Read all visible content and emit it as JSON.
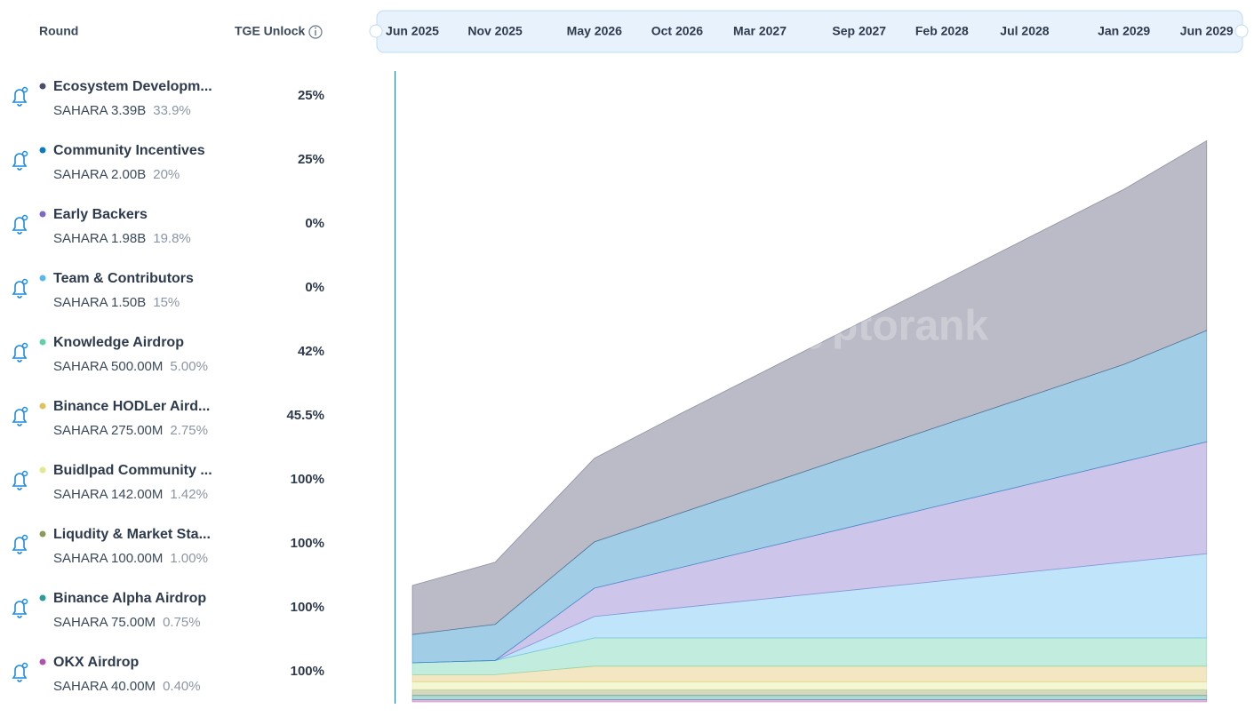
{
  "table": {
    "headers": [
      "Round",
      "TGE Unlock"
    ],
    "rows": [
      {
        "amount": "SAHARA 3.39B",
        "share": "33.9%",
        "tge": "25%"
      },
      {
        "amount": "SAHARA 2.00B",
        "share": "20%",
        "tge": "25%"
      },
      {
        "amount": "SAHARA 1.98B",
        "share": "19.8%",
        "tge": "0%"
      },
      {
        "amount": "SAHARA 1.50B",
        "share": "15%",
        "tge": "0%"
      },
      {
        "amount": "SAHARA 500.00M",
        "share": "5.00%",
        "tge": "42%"
      },
      {
        "amount": "SAHARA 275.00M",
        "share": "2.75%",
        "tge": "45.5%"
      },
      {
        "amount": "SAHARA 142.00M",
        "share": "1.42%",
        "tge": "100%"
      },
      {
        "amount": "SAHARA 100.00M",
        "share": "1.00%",
        "tge": "100%"
      },
      {
        "amount": "SAHARA 75.00M",
        "share": "0.75%",
        "tge": "100%"
      },
      {
        "amount": "SAHARA 40.00M",
        "share": "0.40%",
        "tge": "100%"
      }
    ]
  },
  "chart_data": {
    "type": "area",
    "stacked": true,
    "watermark": "cryptorank",
    "x": [
      "Jun 2025",
      "Nov 2025",
      "May 2026",
      "Oct 2026",
      "Mar 2027",
      "Sep 2027",
      "Feb 2028",
      "Jul 2028",
      "Jan 2029",
      "Jun 2029"
    ],
    "ylim": [
      0,
      10
    ],
    "series": [
      {
        "name": "Ecosystem Developm...",
        "color": "#4a4d6a",
        "values": [
          0.87,
          1.1,
          1.48,
          1.75,
          2.0,
          2.3,
          2.55,
          2.8,
          3.1,
          3.36
        ]
      },
      {
        "name": "Community Incentives",
        "color": "#0b7bbf",
        "values": [
          0.5,
          0.64,
          0.82,
          0.96,
          1.1,
          1.27,
          1.41,
          1.55,
          1.72,
          1.97
        ]
      },
      {
        "name": "Early Backers",
        "color": "#7b68c8",
        "values": [
          0,
          0,
          0.5,
          0.7,
          0.9,
          1.14,
          1.34,
          1.54,
          1.78,
          1.98
        ]
      },
      {
        "name": "Team & Contributors",
        "color": "#5ab8ee",
        "values": [
          0,
          0,
          0.38,
          0.53,
          0.68,
          0.86,
          1.01,
          1.16,
          1.34,
          1.49
        ]
      },
      {
        "name": "Knowledge Airdrop",
        "color": "#5fd0a8",
        "values": [
          0.21,
          0.25,
          0.5,
          0.5,
          0.5,
          0.5,
          0.5,
          0.5,
          0.5,
          0.5
        ]
      },
      {
        "name": "Binance HODLer Aird...",
        "color": "#e0c060",
        "values": [
          0.125,
          0.125,
          0.275,
          0.275,
          0.275,
          0.275,
          0.275,
          0.275,
          0.275,
          0.275
        ]
      },
      {
        "name": "Buidlpad Community ...",
        "color": "#dfe98e",
        "values": [
          0.142,
          0.142,
          0.142,
          0.142,
          0.142,
          0.142,
          0.142,
          0.142,
          0.142,
          0.142
        ]
      },
      {
        "name": "Liqudity & Market Sta...",
        "color": "#8a9a5a",
        "values": [
          0.1,
          0.1,
          0.1,
          0.1,
          0.1,
          0.1,
          0.1,
          0.1,
          0.1,
          0.1
        ]
      },
      {
        "name": "Binance Alpha Airdrop",
        "color": "#2a9a9a",
        "values": [
          0.075,
          0.075,
          0.075,
          0.075,
          0.075,
          0.075,
          0.075,
          0.075,
          0.075,
          0.075
        ]
      },
      {
        "name": "OKX Airdrop",
        "color": "#b050b0",
        "values": [
          0.04,
          0.04,
          0.04,
          0.04,
          0.04,
          0.04,
          0.04,
          0.04,
          0.04,
          0.04
        ]
      }
    ]
  }
}
